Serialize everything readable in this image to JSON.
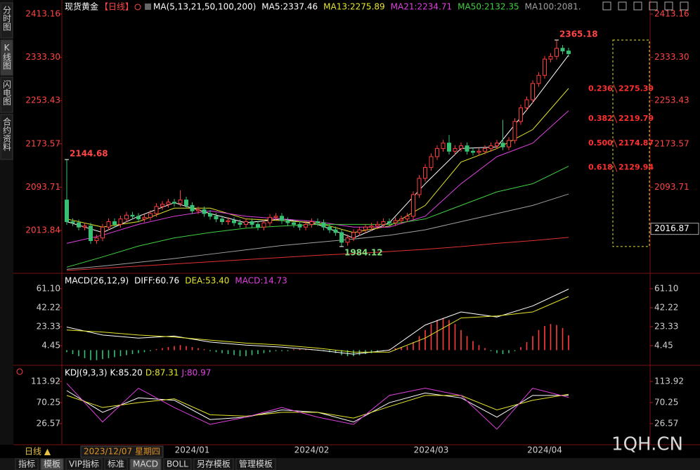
{
  "sidebar": [
    "分时图",
    "K线图",
    "闪电图",
    "合约资料"
  ],
  "header": {
    "symbol": "现货黄金",
    "period": "【日线】"
  },
  "chart_data": [
    {
      "type": "candlestick",
      "title": "MA(5,13,21,50,100,200)",
      "categories": [
        null,
        null,
        null,
        null,
        null,
        null,
        null,
        null,
        null,
        null,
        null,
        null,
        null,
        null,
        null,
        null,
        null,
        null,
        null,
        null,
        null,
        "2024/01",
        null,
        null,
        null,
        null,
        null,
        null,
        null,
        null,
        null,
        null,
        null,
        null,
        null,
        null,
        null,
        null,
        null,
        null,
        null,
        "2024/02",
        null,
        null,
        null,
        null,
        null,
        null,
        null,
        null,
        null,
        null,
        null,
        null,
        null,
        null,
        null,
        null,
        null,
        null,
        null,
        "2024/03",
        null,
        null,
        null,
        null,
        null,
        null,
        null,
        null,
        null,
        null,
        null,
        null,
        null,
        null,
        null,
        null,
        null,
        null,
        "2024/04",
        null,
        null,
        null,
        null
      ],
      "open": [
        2070,
        2030,
        2028,
        2020,
        2022,
        1995,
        2000,
        2020,
        2030,
        2025,
        2035,
        2042,
        2040,
        2035,
        2038,
        2045,
        2058,
        2062,
        2066,
        2064,
        2070,
        2060,
        2050,
        2052,
        2045,
        2040,
        2035,
        2030,
        2032,
        2028,
        2025,
        2030,
        2025,
        2020,
        2028,
        2038,
        2040,
        2032,
        2028,
        2025,
        2020,
        2025,
        2030,
        2028,
        2020,
        2015,
        2010,
        1992,
        2000,
        2010,
        2015,
        2020,
        2022,
        2025,
        2030,
        2028,
        2032,
        2035,
        2040,
        2080,
        2110,
        2130,
        2150,
        2165,
        2175,
        2160,
        2165,
        2170,
        2160,
        2158,
        2160,
        2165,
        2170,
        2175,
        2168,
        2180,
        2215,
        2240,
        2255,
        2285,
        2300,
        2330,
        2335,
        2350,
        2345
      ],
      "high": [
        2144.68,
        2036,
        2034,
        2028,
        2028,
        2006,
        2026,
        2036,
        2036,
        2041,
        2048,
        2048,
        2046,
        2044,
        2051,
        2064,
        2068,
        2072,
        2072,
        2088,
        2076,
        2066,
        2058,
        2058,
        2051,
        2046,
        2041,
        2038,
        2038,
        2034,
        2036,
        2036,
        2031,
        2034,
        2044,
        2046,
        2046,
        2038,
        2034,
        2031,
        2031,
        2036,
        2036,
        2034,
        2026,
        2021,
        2016,
        2006,
        2016,
        2021,
        2026,
        2028,
        2031,
        2036,
        2036,
        2038,
        2041,
        2046,
        2086,
        2116,
        2136,
        2156,
        2171,
        2181,
        2190,
        2171,
        2176,
        2176,
        2166,
        2166,
        2171,
        2176,
        2181,
        2218,
        2186,
        2221,
        2246,
        2261,
        2291,
        2306,
        2336,
        2341,
        2365.18,
        2356,
        2351
      ],
      "low": [
        2024,
        2022,
        2014,
        2014,
        1989,
        1989,
        1994,
        2014,
        2019,
        2019,
        2029,
        2034,
        2029,
        2029,
        2032,
        2039,
        2052,
        2056,
        2058,
        2058,
        2054,
        2044,
        2044,
        2039,
        2034,
        2029,
        2024,
        2024,
        2022,
        2019,
        2019,
        2019,
        2014,
        2014,
        2022,
        2032,
        2026,
        2022,
        2019,
        2014,
        2014,
        2019,
        2022,
        2014,
        2009,
        2004,
        1984.12,
        1986,
        1994,
        2004,
        2009,
        2014,
        2016,
        2019,
        2022,
        2022,
        2026,
        2029,
        2034,
        2074,
        2104,
        2124,
        2144,
        2159,
        2154,
        2154,
        2159,
        2154,
        2152,
        2152,
        2154,
        2159,
        2164,
        2162,
        2162,
        2174,
        2209,
        2234,
        2249,
        2279,
        2294,
        2324,
        2329,
        2339,
        2334
      ],
      "close": [
        2030,
        2028,
        2020,
        2022,
        1995,
        2000,
        2020,
        2030,
        2025,
        2035,
        2042,
        2040,
        2035,
        2038,
        2045,
        2058,
        2062,
        2066,
        2064,
        2070,
        2060,
        2050,
        2052,
        2045,
        2040,
        2035,
        2030,
        2032,
        2028,
        2025,
        2030,
        2025,
        2020,
        2028,
        2038,
        2040,
        2032,
        2028,
        2025,
        2020,
        2025,
        2030,
        2028,
        2020,
        2015,
        2010,
        1992,
        2000,
        2010,
        2015,
        2020,
        2022,
        2025,
        2030,
        2028,
        2032,
        2035,
        2040,
        2080,
        2110,
        2130,
        2150,
        2165,
        2175,
        2160,
        2165,
        2170,
        2160,
        2158,
        2160,
        2165,
        2170,
        2175,
        2168,
        2180,
        2215,
        2240,
        2255,
        2285,
        2300,
        2330,
        2335,
        2350,
        2345,
        2340
      ],
      "up_color": "#ff3c3c",
      "down_color": "#38c172",
      "series": [
        {
          "name": "MA5:2337.46",
          "color": "#ffffff",
          "x": [
            0,
            6,
            12,
            18,
            24,
            30,
            36,
            42,
            48,
            54,
            60,
            66,
            72,
            78,
            84
          ],
          "values": [
            2030,
            2010,
            2040,
            2065,
            2045,
            2028,
            2035,
            2025,
            2000,
            2028,
            2100,
            2165,
            2168,
            2250,
            2337.46
          ]
        },
        {
          "name": "MA13:2275.89",
          "color": "#e6e62e",
          "x": [
            0,
            6,
            12,
            18,
            24,
            30,
            36,
            42,
            48,
            54,
            60,
            66,
            72,
            78,
            84
          ],
          "values": [
            2035,
            2020,
            2030,
            2055,
            2055,
            2035,
            2032,
            2028,
            2010,
            2022,
            2060,
            2140,
            2165,
            2200,
            2275.89
          ]
        },
        {
          "name": "MA21:2234.71",
          "color": "#e040e0",
          "x": [
            0,
            6,
            12,
            18,
            24,
            30,
            36,
            42,
            48,
            54,
            60,
            66,
            72,
            78,
            84
          ],
          "values": [
            1990,
            2005,
            2025,
            2040,
            2050,
            2040,
            2035,
            2030,
            2020,
            2020,
            2040,
            2100,
            2150,
            2175,
            2234.71
          ]
        },
        {
          "name": "MA50:2132.35",
          "color": "#40d040",
          "x": [
            0,
            6,
            12,
            18,
            24,
            30,
            36,
            42,
            48,
            54,
            60,
            66,
            72,
            78,
            84
          ],
          "values": [
            1946,
            1965,
            1985,
            2000,
            2010,
            2018,
            2022,
            2025,
            2025,
            2025,
            2035,
            2060,
            2085,
            2100,
            2132.35
          ]
        },
        {
          "name": "MA100:2081.",
          "color": "#a0a0a0",
          "x": [
            0,
            6,
            12,
            18,
            24,
            30,
            36,
            42,
            48,
            54,
            60,
            66,
            72,
            78,
            84
          ],
          "values": [
            1942,
            1948,
            1955,
            1962,
            1970,
            1978,
            1986,
            1992,
            1998,
            2005,
            2015,
            2030,
            2045,
            2060,
            2081
          ]
        },
        {
          "color": "#e03030",
          "x": [
            0,
            6,
            12,
            18,
            24,
            30,
            36,
            42,
            48,
            54,
            60,
            66,
            72,
            78,
            84
          ],
          "values": [
            1940,
            1944,
            1948,
            1952,
            1956,
            1960,
            1964,
            1968,
            1971,
            1975,
            1979,
            1984,
            1990,
            1995,
            2001
          ]
        }
      ],
      "fibonacci": [
        {
          "ratio": "0.236",
          "value": 2275.39
        },
        {
          "ratio": "0.382",
          "value": 2219.79
        },
        {
          "ratio": "0.500",
          "value": 2174.87
        },
        {
          "ratio": "0.618",
          "value": 2129.94
        }
      ],
      "cursor_price": 2016.87,
      "ylim": [
        1939.94,
        2423.53
      ],
      "yticks": [
        2013.84,
        2093.71,
        2173.57,
        2253.43,
        {
          "value": 2333.3,
          "label": "2333.30"
        },
        2413.16
      ]
    },
    {
      "type": "macd",
      "title": "MACD(26,12,9)",
      "histogram": {
        "name": "MACD:14.73",
        "color": "#e040e0",
        "up_color": "#ff3c3c",
        "down_color": "#38c172",
        "values": [
          -2,
          -4,
          -6,
          -8,
          -10,
          -10,
          -9,
          -8,
          -7,
          -6,
          -5,
          -4,
          -3,
          -2,
          -1,
          1,
          2,
          3,
          4,
          5,
          4,
          3,
          2,
          1,
          -1,
          -2,
          -3,
          -4,
          -5,
          -6,
          -6,
          -5,
          -4,
          -3,
          -2,
          -1,
          -1,
          -1,
          1,
          1,
          1,
          1,
          0.5,
          -1,
          -2,
          -3,
          -5,
          -6,
          -6,
          -5,
          -4,
          -3,
          -2,
          -1,
          1,
          2,
          3,
          4,
          8,
          14,
          20,
          26,
          30,
          32,
          30,
          26,
          20,
          14,
          9,
          5,
          2,
          -1,
          -3,
          -4,
          -3,
          -1,
          3,
          8,
          14,
          20,
          24,
          26,
          25,
          22,
          14.73
        ]
      },
      "series": [
        {
          "name": "DIFF:60.76",
          "color": "#ffffff",
          "x": [
            0,
            6,
            12,
            18,
            24,
            30,
            36,
            42,
            48,
            54,
            60,
            66,
            72,
            78,
            84
          ],
          "values": [
            23,
            15,
            12,
            14,
            8,
            5,
            3,
            0,
            -4,
            0,
            25,
            38,
            33,
            44,
            60.76
          ]
        },
        {
          "name": "DEA:53.40",
          "color": "#e6e62e",
          "x": [
            0,
            6,
            12,
            18,
            24,
            30,
            36,
            42,
            48,
            54,
            60,
            66,
            72,
            78,
            84
          ],
          "values": [
            20,
            18,
            15,
            13,
            10,
            7,
            5,
            2,
            -2,
            -2,
            12,
            32,
            34,
            38,
            53.4
          ]
        }
      ],
      "ylim": [
        -13.73,
        72.29
      ],
      "yticks": [
        4.45,
        23.33,
        42.22,
        {
          "value": 61.1,
          "label": "61.10"
        }
      ]
    },
    {
      "type": "kdj",
      "title": "KDJ(9,3,3)",
      "series": [
        {
          "name": "K:85.20",
          "color": "#ffffff",
          "x": [
            0,
            6,
            12,
            18,
            24,
            30,
            36,
            42,
            48,
            54,
            60,
            66,
            72,
            78,
            84
          ],
          "values": [
            95,
            50,
            80,
            75,
            35,
            40,
            55,
            50,
            30,
            70,
            90,
            80,
            40,
            85,
            85.2
          ]
        },
        {
          "name": "D:87.31",
          "color": "#e6e62e",
          "x": [
            0,
            6,
            12,
            18,
            24,
            30,
            36,
            42,
            48,
            54,
            60,
            66,
            72,
            78,
            84
          ],
          "values": [
            85,
            60,
            70,
            78,
            45,
            42,
            50,
            50,
            38,
            62,
            85,
            85,
            55,
            75,
            87.31
          ]
        },
        {
          "name": "J:80.97",
          "color": "#e040e0",
          "x": [
            0,
            6,
            12,
            18,
            24,
            30,
            36,
            42,
            48,
            54,
            60,
            66,
            72,
            78,
            84
          ],
          "values": [
            110,
            30,
            100,
            60,
            25,
            40,
            60,
            40,
            25,
            85,
            100,
            85,
            15,
            100,
            80.97
          ]
        }
      ],
      "ylim": [
        -12.73,
        141.58
      ],
      "yticks": [
        26.57,
        70.25,
        113.92
      ]
    }
  ],
  "footer": {
    "period": "日线 ▲",
    "cursor_date": "2023/12/07 星期四",
    "tabs": [
      "指标",
      "模板",
      "VIP指标",
      "标准",
      "MACD",
      "BOLL",
      "另存模板",
      "管理模板"
    ],
    "selected_tabs": [
      "模板",
      "MACD"
    ],
    "watermark": "1QH.CN"
  }
}
